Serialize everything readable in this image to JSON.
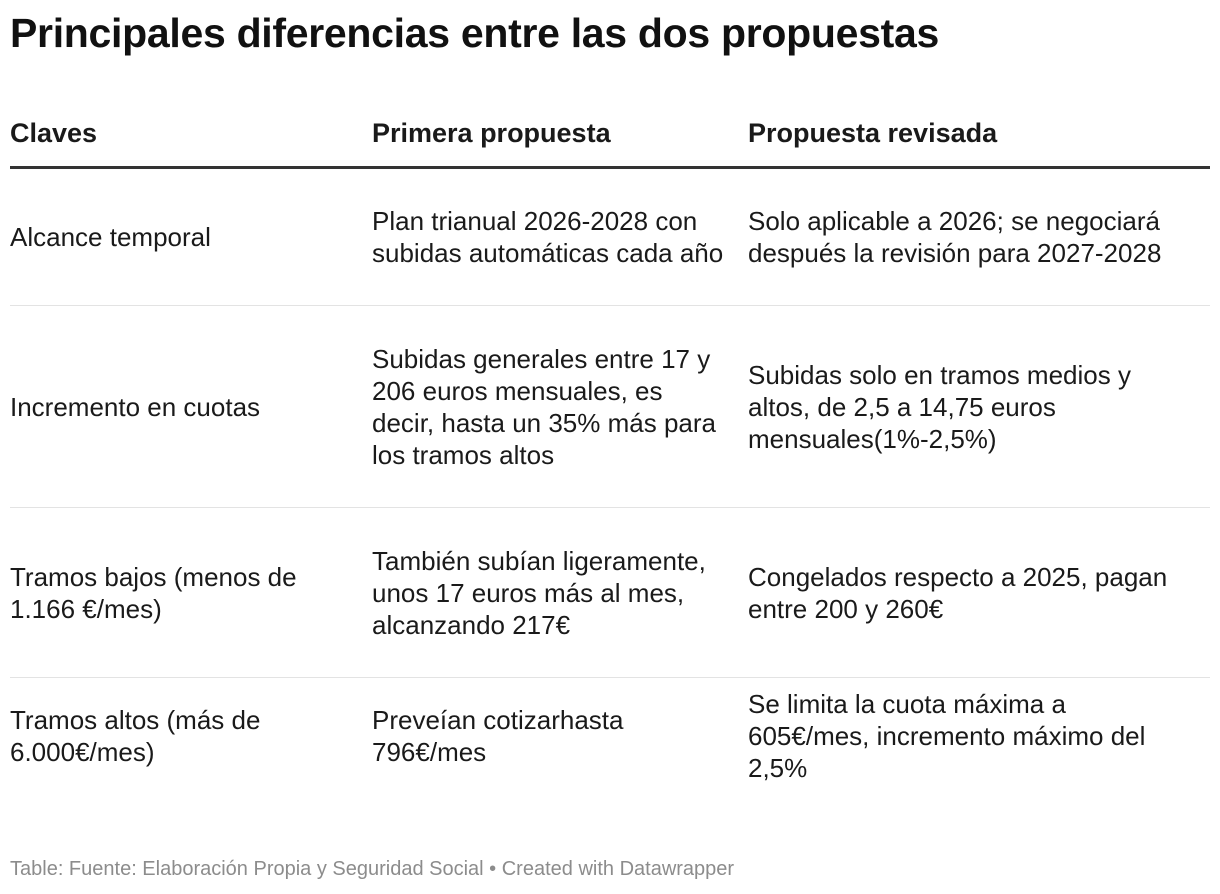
{
  "title": "Principales diferencias entre las dos propuestas",
  "table": {
    "headers": [
      "Claves",
      "Primera propuesta",
      "Propuesta revisada"
    ],
    "rows": [
      [
        "Alcance temporal",
        "Plan trianual 2026-2028 con subidas automáticas cada año",
        "Solo aplicable a 2026; se negociará después la revisión para 2027-2028"
      ],
      [
        "Incremento en cuotas",
        "Subidas generales entre 17 y 206 euros mensuales, es decir, hasta un 35% más para los tramos altos",
        "Subidas solo en tramos medios y altos, de 2,5 a 14,75 euros mensuales(1%-2,5%)"
      ],
      [
        "Tramos bajos (menos de 1.166 €/mes)",
        "También subían ligeramente, unos 17 euros más al mes, alcanzando 217€",
        "Congelados respecto a 2025, pagan entre 200 y 260€"
      ],
      [
        "Tramos altos (más de 6.000€/mes)",
        "Preveían cotizarhasta 796€/mes",
        "Se limita la cuota máxima a 605€/mes, incremento máximo del 2,5%"
      ]
    ]
  },
  "footer": "Table: Fuente: Elaboración Propia y Seguridad Social • Created with Datawrapper"
}
